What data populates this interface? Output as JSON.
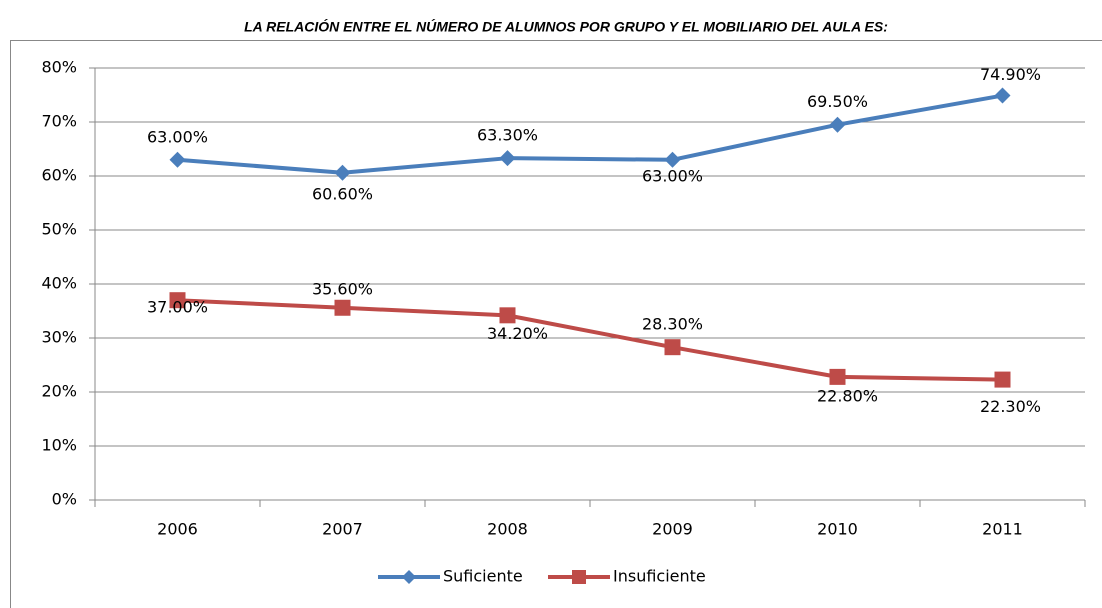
{
  "chart_data": {
    "type": "line",
    "title": "LA RELACIÓN ENTRE EL NÚMERO DE ALUMNOS POR GRUPO Y EL MOBILIARIO DEL AULA ES:",
    "categories": [
      "2006",
      "2007",
      "2008",
      "2009",
      "2010",
      "2011"
    ],
    "series": [
      {
        "name": "Suficiente",
        "color": "#4a7ebb",
        "marker": "diamond",
        "values": [
          63.0,
          60.6,
          63.3,
          63.0,
          69.5,
          74.9
        ],
        "value_labels": [
          "63.00%",
          "60.60%",
          "63.30%",
          "63.00%",
          "69.50%",
          "74.90%"
        ]
      },
      {
        "name": "Insuficiente",
        "color": "#be4b48",
        "marker": "square",
        "values": [
          37.0,
          35.6,
          34.2,
          28.3,
          22.8,
          22.3
        ],
        "value_labels": [
          "37.00%",
          "35.60%",
          "34.20%",
          "28.30%",
          "22.80%",
          "22.30%"
        ]
      }
    ],
    "ylim": [
      0,
      80
    ],
    "yticks": [
      {
        "value": 0,
        "label": "0%"
      },
      {
        "value": 10,
        "label": "10%"
      },
      {
        "value": 20,
        "label": "20%"
      },
      {
        "value": 30,
        "label": "30%"
      },
      {
        "value": 40,
        "label": "40%"
      },
      {
        "value": 50,
        "label": "50%"
      },
      {
        "value": 60,
        "label": "60%"
      },
      {
        "value": 70,
        "label": "70%"
      },
      {
        "value": 80,
        "label": "80%"
      }
    ],
    "grid": true,
    "legend": "bottom"
  }
}
